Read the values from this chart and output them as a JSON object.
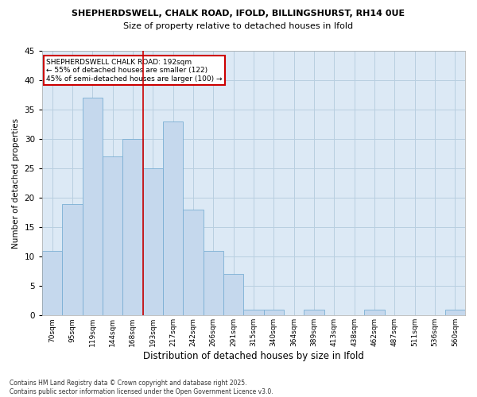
{
  "title1": "SHEPHERDSWELL, CHALK ROAD, IFOLD, BILLINGSHURST, RH14 0UE",
  "title2": "Size of property relative to detached houses in Ifold",
  "xlabel": "Distribution of detached houses by size in Ifold",
  "ylabel": "Number of detached properties",
  "categories": [
    "70sqm",
    "95sqm",
    "119sqm",
    "144sqm",
    "168sqm",
    "193sqm",
    "217sqm",
    "242sqm",
    "266sqm",
    "291sqm",
    "315sqm",
    "340sqm",
    "364sqm",
    "389sqm",
    "413sqm",
    "438sqm",
    "462sqm",
    "487sqm",
    "511sqm",
    "536sqm",
    "560sqm"
  ],
  "values": [
    11,
    19,
    37,
    27,
    30,
    25,
    33,
    18,
    11,
    7,
    1,
    1,
    0,
    1,
    0,
    0,
    1,
    0,
    0,
    0,
    1
  ],
  "bar_color": "#c5d8ed",
  "bar_edge_color": "#7aafd4",
  "marker_index": 5,
  "marker_color": "#cc0000",
  "annotation_title": "SHEPHERDSWELL CHALK ROAD: 192sqm",
  "annotation_line1": "← 55% of detached houses are smaller (122)",
  "annotation_line2": "45% of semi-detached houses are larger (100) →",
  "annotation_box_color": "#cc0000",
  "ylim": [
    0,
    45
  ],
  "yticks": [
    0,
    5,
    10,
    15,
    20,
    25,
    30,
    35,
    40,
    45
  ],
  "footer1": "Contains HM Land Registry data © Crown copyright and database right 2025.",
  "footer2": "Contains public sector information licensed under the Open Government Licence v3.0.",
  "background_color": "#ffffff",
  "plot_bg_color": "#dce9f5",
  "grid_color": "#b8cfe0"
}
